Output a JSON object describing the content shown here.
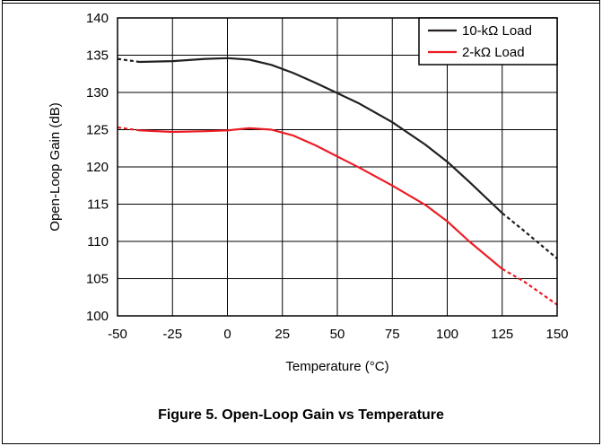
{
  "caption": "Figure 5. Open-Loop Gain vs Temperature",
  "chart_data": {
    "type": "line",
    "title": "",
    "xlabel": "Temperature (°C)",
    "ylabel": "Open-Loop Gain (dB)",
    "xlim": [
      -50,
      150
    ],
    "ylim": [
      100,
      140
    ],
    "x_ticks": [
      -50,
      -25,
      0,
      25,
      50,
      75,
      100,
      125,
      150
    ],
    "y_ticks": [
      100,
      105,
      110,
      115,
      120,
      125,
      130,
      135,
      140
    ],
    "grid": true,
    "legend_position": "top-right",
    "note": "Dashed segments below -40 °C and above 125 °C",
    "series": [
      {
        "name": "10-kΩ Load",
        "color": "#231f20",
        "x": [
          -50,
          -40,
          -25,
          -10,
          0,
          10,
          20,
          30,
          40,
          50,
          60,
          75,
          90,
          100,
          110,
          125,
          135,
          150
        ],
        "y": [
          134.5,
          134.1,
          134.2,
          134.5,
          134.6,
          134.4,
          133.7,
          132.6,
          131.3,
          129.9,
          128.5,
          126.0,
          123.0,
          120.7,
          118.0,
          113.8,
          111.4,
          107.7
        ]
      },
      {
        "name": "2-kΩ Load",
        "color": "#ed1c24",
        "x": [
          -50,
          -40,
          -25,
          -10,
          0,
          10,
          20,
          30,
          40,
          50,
          60,
          75,
          90,
          100,
          110,
          125,
          135,
          150
        ],
        "y": [
          125.3,
          124.9,
          124.7,
          124.8,
          124.9,
          125.2,
          125.0,
          124.2,
          122.9,
          121.4,
          119.9,
          117.5,
          114.9,
          112.7,
          110.0,
          106.3,
          104.6,
          101.5
        ]
      }
    ]
  }
}
